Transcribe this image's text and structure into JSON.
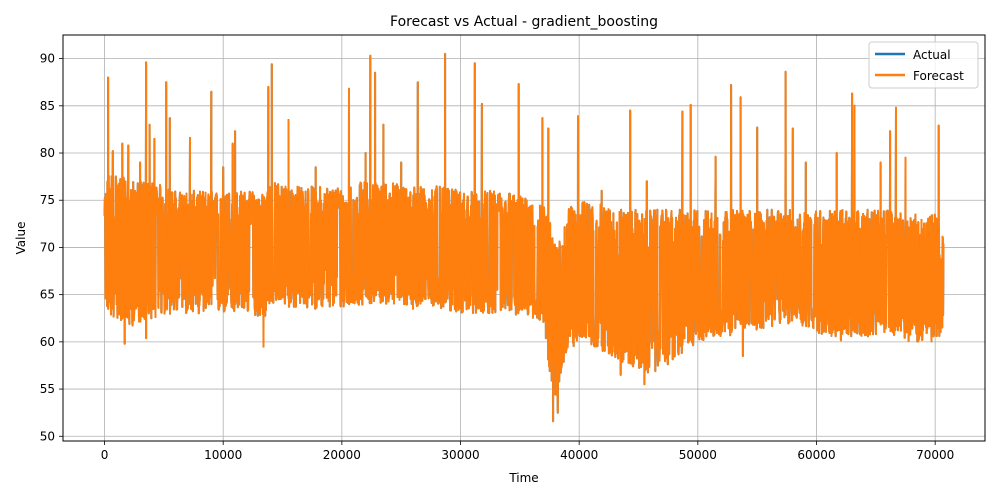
{
  "chart_data": {
    "type": "line",
    "title": "Forecast vs Actual - gradient_boosting",
    "xlabel": "Time",
    "ylabel": "Value",
    "xlim": [
      -3500,
      74200
    ],
    "ylim": [
      49.5,
      92.5
    ],
    "xticks": [
      0,
      10000,
      20000,
      30000,
      40000,
      50000,
      60000,
      70000
    ],
    "yticks": [
      50,
      55,
      60,
      65,
      70,
      75,
      80,
      85,
      90
    ],
    "grid": true,
    "legend_position": "top-right",
    "x_range": [
      0,
      70700
    ],
    "series": [
      {
        "name": "Actual",
        "color": "#1f77b4"
      },
      {
        "name": "Forecast",
        "color": "#ff7f0e"
      }
    ],
    "envelope": {
      "x": [
        0,
        300,
        1000,
        2000,
        3000,
        4000,
        6000,
        8000,
        10000,
        12000,
        13500,
        14000,
        16000,
        18000,
        20000,
        22000,
        24000,
        26000,
        28000,
        30000,
        32000,
        34000,
        36000,
        37000,
        37500,
        38000,
        38500,
        39000,
        40000,
        42000,
        44000,
        46000,
        48000,
        50000,
        52000,
        54000,
        56000,
        58000,
        60000,
        62000,
        64000,
        66000,
        68000,
        70000,
        70700
      ],
      "upper": [
        75,
        78,
        78,
        77,
        77,
        77,
        76,
        76,
        76,
        76,
        76,
        77,
        76.5,
        76.5,
        76.5,
        77,
        77,
        76.5,
        76.5,
        76,
        76,
        76,
        75,
        74.5,
        73,
        70,
        72,
        74,
        75,
        74.5,
        74,
        74,
        74,
        74,
        74,
        74,
        74,
        74,
        74,
        74,
        74,
        74,
        73.5,
        73.5,
        71
      ],
      "lower": [
        65,
        62.5,
        62.5,
        61.5,
        62,
        62.5,
        63,
        63,
        63,
        63,
        62.5,
        64,
        63.5,
        63.5,
        63.5,
        64,
        64,
        63.5,
        63.5,
        63,
        63,
        63,
        62.5,
        62,
        57,
        53,
        55,
        59,
        60,
        59,
        57.5,
        56.5,
        58,
        60,
        60.5,
        61,
        61.5,
        62,
        61,
        60,
        60.5,
        61,
        60,
        60,
        61
      ]
    },
    "spikes": [
      [
        300,
        88
      ],
      [
        700,
        80.2
      ],
      [
        1500,
        81
      ],
      [
        2000,
        80.8
      ],
      [
        3000,
        79
      ],
      [
        3500,
        89.6
      ],
      [
        3800,
        83
      ],
      [
        4200,
        81.5
      ],
      [
        5200,
        87.5
      ],
      [
        5500,
        83.7
      ],
      [
        7200,
        81.6
      ],
      [
        9000,
        86.5
      ],
      [
        10000,
        78.5
      ],
      [
        10800,
        81
      ],
      [
        11000,
        82.3
      ],
      [
        13800,
        87
      ],
      [
        14100,
        89.4
      ],
      [
        15500,
        83.5
      ],
      [
        17800,
        78.5
      ],
      [
        20600,
        86.8
      ],
      [
        22000,
        80
      ],
      [
        22400,
        90.3
      ],
      [
        22800,
        88.5
      ],
      [
        23500,
        83
      ],
      [
        25000,
        79
      ],
      [
        26400,
        87.5
      ],
      [
        28700,
        90.5
      ],
      [
        31200,
        89.5
      ],
      [
        31800,
        85.2
      ],
      [
        34900,
        87.3
      ],
      [
        36900,
        83.7
      ],
      [
        37400,
        82.6
      ],
      [
        39900,
        83.9
      ],
      [
        41900,
        76
      ],
      [
        44300,
        84.5
      ],
      [
        45700,
        77
      ],
      [
        48700,
        84.4
      ],
      [
        49400,
        85.1
      ],
      [
        51500,
        79.6
      ],
      [
        52800,
        87.2
      ],
      [
        53600,
        85.9
      ],
      [
        55000,
        82.7
      ],
      [
        57400,
        88.6
      ],
      [
        58000,
        82.6
      ],
      [
        59100,
        79
      ],
      [
        61700,
        80
      ],
      [
        63000,
        86.3
      ],
      [
        63200,
        85
      ],
      [
        65400,
        79
      ],
      [
        66200,
        82.3
      ],
      [
        66700,
        84.8
      ],
      [
        67500,
        79.5
      ],
      [
        70300,
        82.9
      ]
    ],
    "dips": [
      [
        1700,
        59.8
      ],
      [
        3500,
        60.4
      ],
      [
        13400,
        59.5
      ],
      [
        37800,
        51.6
      ],
      [
        38200,
        52.5
      ],
      [
        43500,
        56.5
      ],
      [
        45500,
        55.5
      ],
      [
        53800,
        58.5
      ]
    ]
  }
}
